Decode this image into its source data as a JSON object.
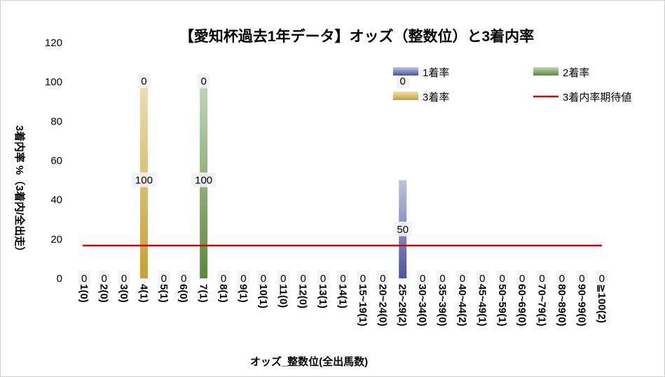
{
  "chart_data": {
    "type": "bar",
    "title": "【愛知杯過去1年データ】オッズ（整数位）と3着内率",
    "xlabel": "オッズ_整数位(全出馬数)",
    "ylabel": "3着内率 %（3着内/全出走）",
    "ylim": [
      0,
      120
    ],
    "yticks": [
      "0",
      "20",
      "40",
      "60",
      "80",
      "100",
      "120"
    ],
    "stacked": true,
    "grid": false,
    "legend_position": "top-right",
    "categories": [
      "1(0)",
      "2(0)",
      "3(0)",
      "4(1)",
      "5(1)",
      "6(0)",
      "7(1)",
      "8(1)",
      "9(1)",
      "10(1)",
      "11(0)",
      "12(0)",
      "13(1)",
      "14(1)",
      "15~19(1)",
      "20~24(0)",
      "25~29(2)",
      "30~34(0)",
      "35~39(0)",
      "40~44(2)",
      "45~49(1)",
      "50~59(1)",
      "60~69(0)",
      "70~79(1)",
      "80~89(0)",
      "90~99(0)",
      "≧100(2)"
    ],
    "series": [
      {
        "name": "1着率",
        "color": "#4a55a0",
        "values": [
          0,
          0,
          0,
          0,
          0,
          0,
          0,
          0,
          0,
          0,
          0,
          0,
          0,
          0,
          0,
          0,
          50,
          0,
          0,
          0,
          0,
          0,
          0,
          0,
          0,
          0,
          0
        ]
      },
      {
        "name": "2着率",
        "color": "#5a8a3c",
        "values": [
          0,
          0,
          0,
          0,
          0,
          0,
          100,
          0,
          0,
          0,
          0,
          0,
          0,
          0,
          0,
          0,
          0,
          0,
          0,
          0,
          0,
          0,
          0,
          0,
          0,
          0,
          0
        ]
      },
      {
        "name": "3着率",
        "color": "#c8a030",
        "values": [
          0,
          0,
          0,
          100,
          0,
          0,
          0,
          0,
          0,
          0,
          0,
          0,
          0,
          0,
          0,
          0,
          0,
          0,
          0,
          0,
          0,
          0,
          0,
          0,
          0,
          0,
          0
        ]
      }
    ],
    "reference_line": {
      "name": "3着内率期待値",
      "value": 16.7,
      "color": "#e00000"
    },
    "data_labels": [
      {
        "category": "1(0)",
        "text": "0"
      },
      {
        "category": "2(0)",
        "text": "0"
      },
      {
        "category": "3(0)",
        "text": "0"
      },
      {
        "category": "4(1)",
        "text": "100"
      },
      {
        "category": "4(1)",
        "text": "0"
      },
      {
        "category": "5(1)",
        "text": "0"
      },
      {
        "category": "6(0)",
        "text": "0"
      },
      {
        "category": "7(1)",
        "text": "100"
      },
      {
        "category": "7(1)",
        "text": "0"
      },
      {
        "category": "8(1)",
        "text": "0"
      },
      {
        "category": "9(1)",
        "text": "0"
      },
      {
        "category": "10(1)",
        "text": "0"
      },
      {
        "category": "11(0)",
        "text": "0"
      },
      {
        "category": "12(0)",
        "text": "0"
      },
      {
        "category": "13(1)",
        "text": "0"
      },
      {
        "category": "14(1)",
        "text": "0"
      },
      {
        "category": "15~19(1)",
        "text": "0"
      },
      {
        "category": "20~24(0)",
        "text": "0"
      },
      {
        "category": "25~29(2)",
        "text": "50"
      },
      {
        "category": "25~29(2)",
        "text": "0"
      },
      {
        "category": "30~34(0)",
        "text": "0"
      },
      {
        "category": "35~39(0)",
        "text": "0"
      },
      {
        "category": "40~44(2)",
        "text": "0"
      },
      {
        "category": "45~49(1)",
        "text": "0"
      },
      {
        "category": "50~59(1)",
        "text": "0"
      },
      {
        "category": "60~69(0)",
        "text": "0"
      },
      {
        "category": "70~79(1)",
        "text": "0"
      },
      {
        "category": "80~89(0)",
        "text": "0"
      },
      {
        "category": "90~99(0)",
        "text": "0"
      },
      {
        "category": "≧100(2)",
        "text": "0"
      }
    ]
  }
}
